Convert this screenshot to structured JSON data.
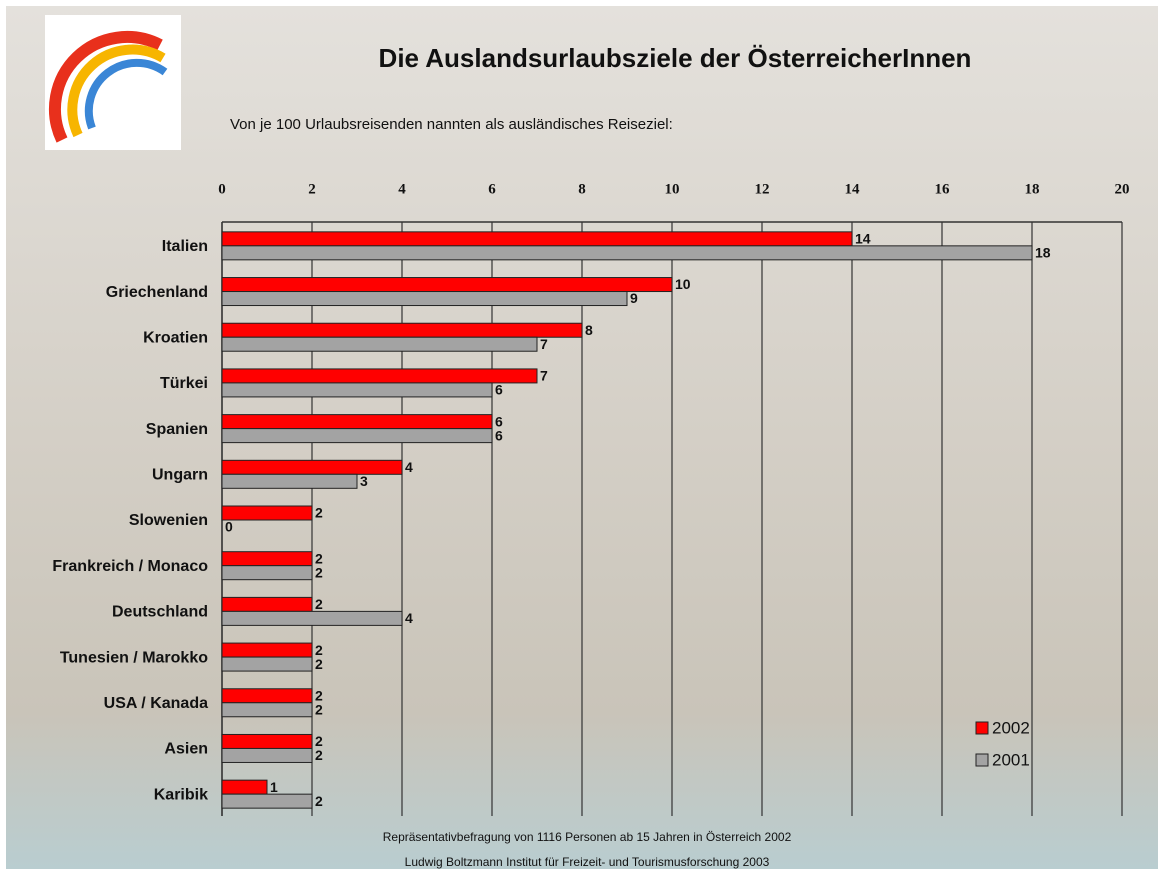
{
  "chart_data": {
    "type": "bar",
    "orientation": "horizontal",
    "title": "Die Auslandsurlaubsziele der ÖsterreicherInnen",
    "subtitle": "Von je 100 Urlaubsreisenden nannten als ausländisches Reiseziel:",
    "notes": [
      "Repräsentativbefragung von 1116 Personen ab 15 Jahren in Österreich 2002",
      "Ludwig Boltzmann Institut für Freizeit- und Tourismusforschung 2003"
    ],
    "categories": [
      "Italien",
      "Griechenland",
      "Kroatien",
      "Türkei",
      "Spanien",
      "Ungarn",
      "Slowenien",
      "Frankreich / Monaco",
      "Deutschland",
      "Tunesien / Marokko",
      "USA / Kanada",
      "Asien",
      "Karibik"
    ],
    "series": [
      {
        "name": "2002",
        "color": "#ff0000",
        "values": [
          14,
          10,
          8,
          7,
          6,
          4,
          2,
          2,
          2,
          2,
          2,
          2,
          1
        ]
      },
      {
        "name": "2001",
        "color": "#a3a3a3",
        "values": [
          18,
          9,
          7,
          6,
          6,
          3,
          0,
          2,
          4,
          2,
          2,
          2,
          2
        ]
      }
    ],
    "xlim": [
      0,
      20
    ],
    "xticks": [
      0,
      2,
      4,
      6,
      8,
      10,
      12,
      14,
      16,
      18,
      20
    ],
    "grid": true,
    "legend_position": "lower right"
  }
}
